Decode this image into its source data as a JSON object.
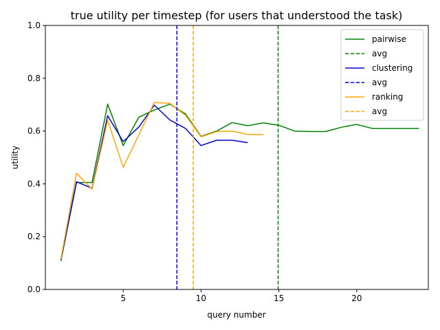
{
  "chart_data": {
    "type": "line",
    "title": "true utility per timestep (for users that understood the task)",
    "xlabel": "query number",
    "ylabel": "utility",
    "xlim": [
      0.0,
      24.6
    ],
    "ylim": [
      0.0,
      1.0
    ],
    "xticks": [
      5,
      10,
      15,
      20
    ],
    "yticks": [
      0.0,
      0.2,
      0.4,
      0.6,
      0.8,
      1.0
    ],
    "xtick_labels": [
      "5",
      "10",
      "15",
      "20"
    ],
    "ytick_labels": [
      "0.0",
      "0.2",
      "0.4",
      "0.6",
      "0.8",
      "1.0"
    ],
    "grid": false,
    "legend_position": "top-right",
    "series": [
      {
        "name": "pairwise",
        "color": "#008000",
        "x": [
          1,
          2,
          3,
          4,
          5,
          6,
          7,
          8,
          9,
          10,
          11,
          12,
          13,
          14,
          15,
          16,
          17,
          18,
          19,
          20,
          21,
          22,
          23,
          24
        ],
        "values": [
          0.108,
          0.405,
          0.405,
          0.702,
          0.545,
          0.652,
          0.68,
          0.702,
          0.665,
          0.58,
          0.6,
          0.632,
          0.62,
          0.631,
          0.622,
          0.6,
          0.598,
          0.598,
          0.614,
          0.625,
          0.61,
          0.61,
          0.61,
          0.61
        ]
      },
      {
        "name": "clustering",
        "color": "#0000cd",
        "x": [
          1,
          2,
          3,
          4,
          5,
          6,
          7,
          8,
          9,
          10,
          11,
          12,
          13
        ],
        "values": [
          0.112,
          0.408,
          0.383,
          0.658,
          0.56,
          0.615,
          0.698,
          0.642,
          0.61,
          0.545,
          0.565,
          0.565,
          0.556
        ]
      },
      {
        "name": "ranking",
        "color": "#ffa500",
        "x": [
          1,
          2,
          3,
          4,
          5,
          6,
          7,
          8,
          9,
          10,
          11,
          12,
          13,
          14
        ],
        "values": [
          0.115,
          0.44,
          0.38,
          0.64,
          0.463,
          0.585,
          0.708,
          0.705,
          0.66,
          0.578,
          0.598,
          0.6,
          0.587,
          0.587
        ]
      }
    ],
    "average_lines": [
      {
        "name": "avg",
        "color": "#008000",
        "x": 14.95
      },
      {
        "name": "avg",
        "color": "#0000cd",
        "x": 8.45
      },
      {
        "name": "avg",
        "color": "#ffa500",
        "x": 9.5
      }
    ],
    "legend_entries": [
      {
        "label": "pairwise",
        "color": "#008000",
        "style": "solid"
      },
      {
        "label": "avg",
        "color": "#008000",
        "style": "dashed"
      },
      {
        "label": "clustering",
        "color": "#0000cd",
        "style": "solid"
      },
      {
        "label": "avg",
        "color": "#0000cd",
        "style": "dashed"
      },
      {
        "label": "ranking",
        "color": "#ffa500",
        "style": "solid"
      },
      {
        "label": "avg",
        "color": "#ffa500",
        "style": "dashed"
      }
    ]
  }
}
